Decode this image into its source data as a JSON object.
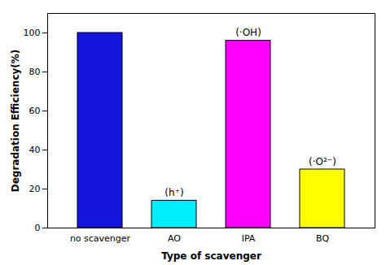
{
  "chart_data": {
    "type": "bar",
    "categories": [
      "no scavenger",
      "AO",
      "IPA",
      "BQ"
    ],
    "values": [
      100,
      14,
      96,
      30
    ],
    "colors": [
      "#1515e0",
      "#00eeff",
      "#ff00ff",
      "#ffff00"
    ],
    "xlabel": "Type of scavenger",
    "ylabel": "Degradation Efficiency(%)",
    "ylim": [
      0,
      110
    ],
    "yticks": [
      0,
      20,
      40,
      60,
      80,
      100
    ],
    "grid": false,
    "annotations": [
      {
        "category": "AO",
        "text": "(h⁺)"
      },
      {
        "category": "IPA",
        "text": "(·OH)"
      },
      {
        "category": "BQ",
        "text": "(·O²⁻)"
      }
    ]
  }
}
